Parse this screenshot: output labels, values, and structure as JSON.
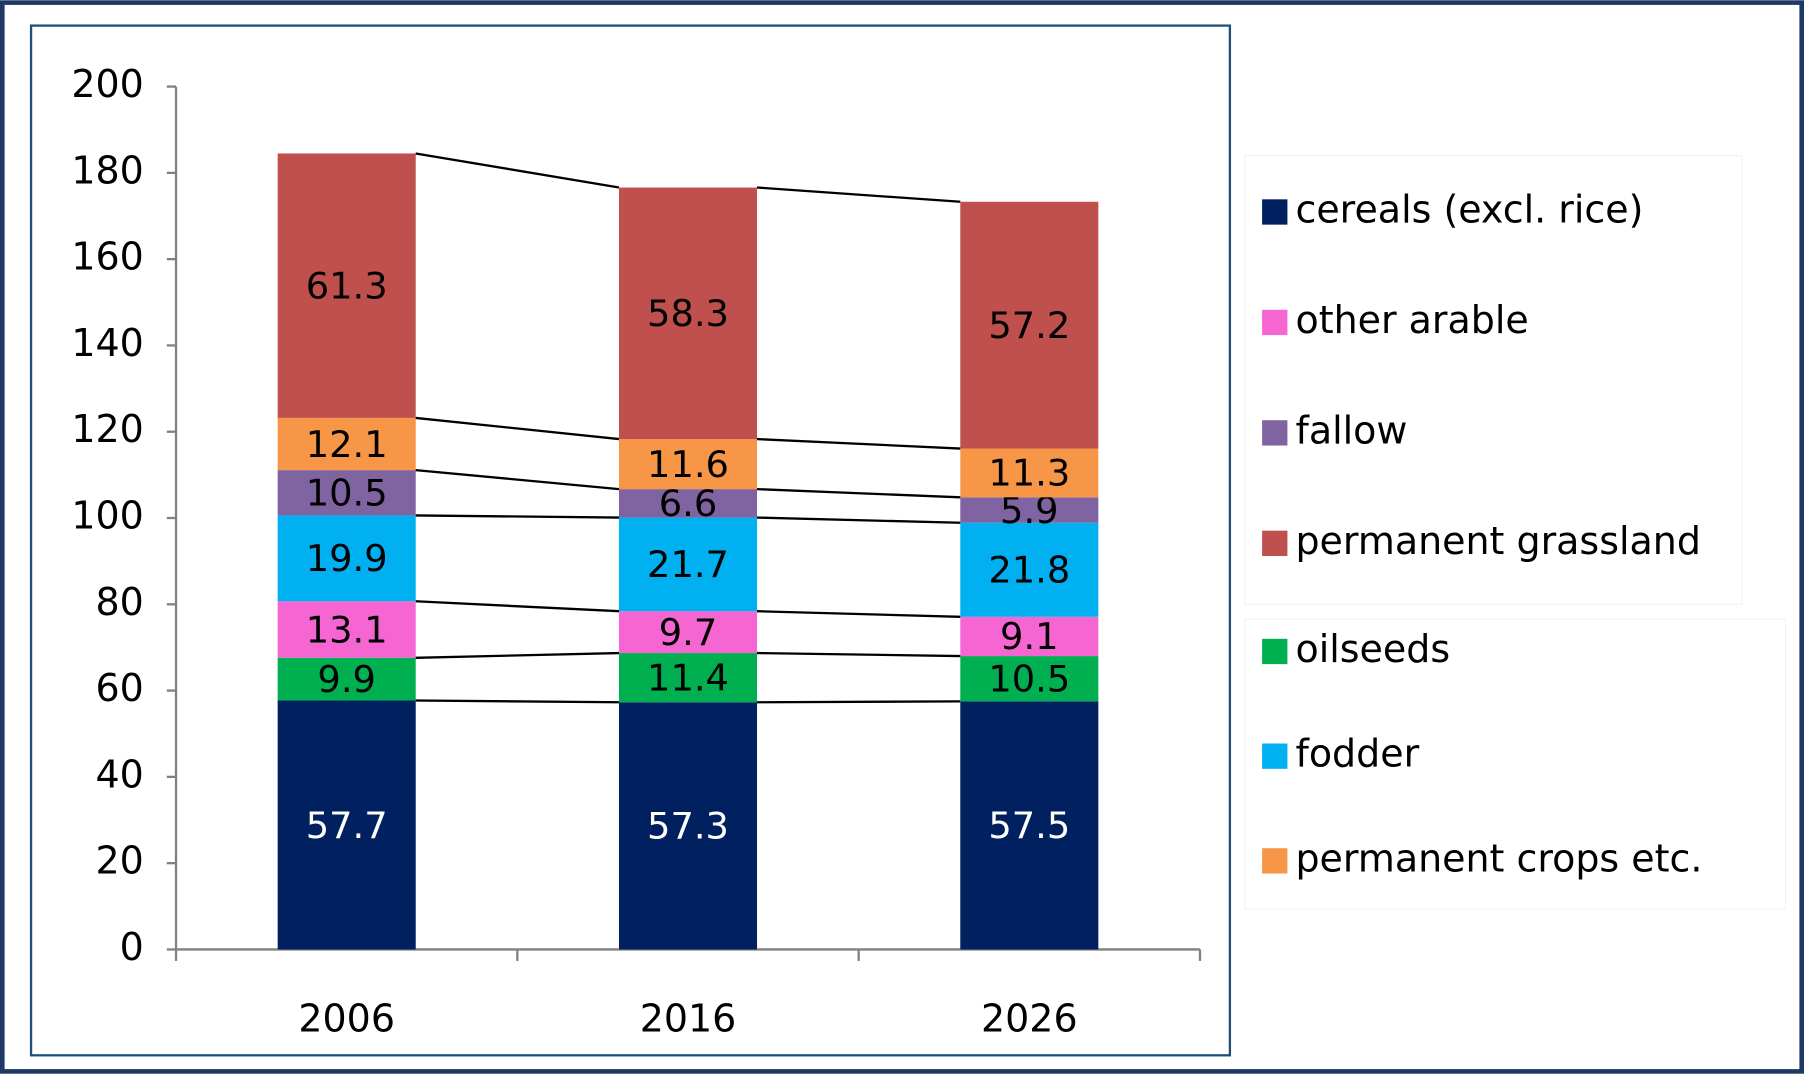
{
  "chart_data": {
    "type": "stacked_bar",
    "categories": [
      "2006",
      "2016",
      "2026"
    ],
    "series": [
      {
        "name": "cereals (excl. rice)",
        "color": "#002060",
        "values": [
          57.7,
          57.3,
          57.5
        ]
      },
      {
        "name": "other arable",
        "color": "#f566d2",
        "values": [
          13.1,
          9.7,
          9.1
        ]
      },
      {
        "name": "fallow",
        "color": "#8064a2",
        "values": [
          10.5,
          6.6,
          5.9
        ]
      },
      {
        "name": "permanent grassland",
        "color": "#c0504d",
        "values": [
          61.3,
          58.3,
          57.2
        ]
      },
      {
        "name": "oilseeds",
        "color": "#00b050",
        "values": [
          9.9,
          11.4,
          10.5
        ]
      },
      {
        "name": "fodder",
        "color": "#00b0f0",
        "values": [
          19.9,
          21.7,
          21.8
        ]
      },
      {
        "name": "permanent crops etc.",
        "color": "#f79646",
        "values": [
          12.1,
          11.6,
          11.3
        ]
      }
    ],
    "ylim": [
      0,
      200
    ],
    "yticks": [
      0,
      20,
      40,
      60,
      80,
      100,
      120,
      140,
      160,
      180,
      200
    ],
    "legend": "right"
  }
}
